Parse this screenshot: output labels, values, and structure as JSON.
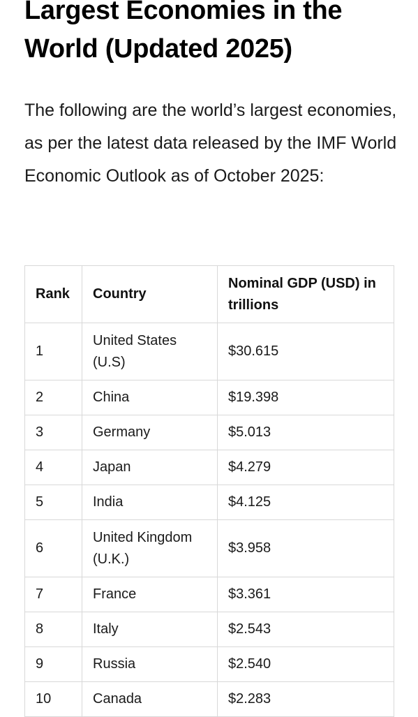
{
  "article": {
    "title": "Largest Economies in the World (Updated 2025)",
    "intro": "The following are the world’s largest economies, as per the latest data released by the IMF World Economic Outlook as of October 2025:"
  },
  "table": {
    "headers": {
      "rank": "Rank",
      "country": "Country",
      "gdp": "Nominal GDP (USD) in trillions"
    },
    "rows": [
      {
        "rank": "1",
        "country": "United States (U.S)",
        "gdp": "$30.615"
      },
      {
        "rank": "2",
        "country": "China",
        "gdp": "$19.398"
      },
      {
        "rank": "3",
        "country": "Germany",
        "gdp": "$5.013"
      },
      {
        "rank": "4",
        "country": "Japan",
        "gdp": "$4.279"
      },
      {
        "rank": "5",
        "country": "India",
        "gdp": "$4.125"
      },
      {
        "rank": "6",
        "country": "United Kingdom (U.K.)",
        "gdp": "$3.958"
      },
      {
        "rank": "7",
        "country": "France",
        "gdp": "$3.361"
      },
      {
        "rank": "8",
        "country": "Italy",
        "gdp": "$2.543"
      },
      {
        "rank": "9",
        "country": "Russia",
        "gdp": "$2.540"
      },
      {
        "rank": "10",
        "country": "Canada",
        "gdp": "$2.283"
      }
    ]
  }
}
